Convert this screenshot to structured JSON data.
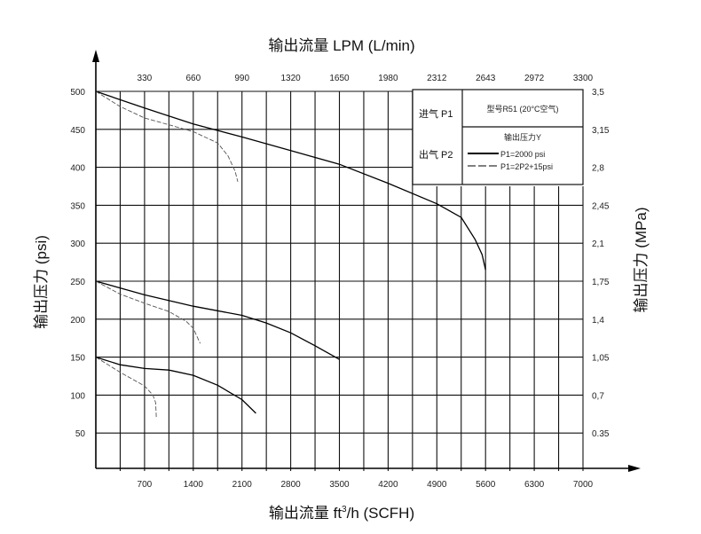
{
  "chart_data": {
    "type": "line",
    "title_top": "输出流量 LPM (L/min)",
    "xlabel_html_prefix": "输出流量 ft",
    "xlabel_sup": "3",
    "xlabel_suffix": "/h (SCFH)",
    "ylabel_left": "输出压力 (psi)",
    "ylabel_right": "输出压力 (MPa)",
    "xlim": [
      0,
      7000
    ],
    "ylim": [
      0,
      500
    ],
    "x_ticks": [
      "700",
      "1400",
      "2100",
      "2800",
      "3500",
      "4200",
      "4900",
      "5600",
      "6300",
      "7000"
    ],
    "x_tick_values": [
      700,
      1400,
      2100,
      2800,
      3500,
      4200,
      4900,
      5600,
      6300,
      7000
    ],
    "top_ticks": [
      "330",
      "660",
      "990",
      "1320",
      "1650",
      "1980",
      "2312",
      "2643",
      "2972",
      "3300"
    ],
    "y_ticks": [
      "50",
      "100",
      "150",
      "200",
      "250",
      "300",
      "350",
      "400",
      "450",
      "500"
    ],
    "y_tick_values": [
      50,
      100,
      150,
      200,
      250,
      300,
      350,
      400,
      450,
      500
    ],
    "right_ticks": [
      "0.35",
      "0,7",
      "1,05",
      "1,4",
      "1,75",
      "2,1",
      "2,45",
      "2,8",
      "3,15",
      "3,5"
    ],
    "grid": true,
    "legend": {
      "inlet": "进气 P1",
      "outlet": "出气 P2",
      "model": "型号R51 (20°C空气)",
      "heading": "输出压力Y",
      "solid_label": "P1=2000 psi",
      "dashed_label": "P1=2P2+15psi"
    },
    "series": [
      {
        "name": "P1=2000 psi, P2=500",
        "style": "solid",
        "points": [
          [
            0,
            500
          ],
          [
            700,
            478
          ],
          [
            1400,
            457
          ],
          [
            2100,
            440
          ],
          [
            2800,
            422
          ],
          [
            3500,
            404
          ],
          [
            4200,
            379
          ],
          [
            4900,
            352
          ],
          [
            5250,
            334
          ],
          [
            5450,
            305
          ],
          [
            5550,
            285
          ],
          [
            5600,
            265
          ]
        ]
      },
      {
        "name": "P1=2P2+15psi, P2=500",
        "style": "dashed",
        "points": [
          [
            0,
            500
          ],
          [
            350,
            480
          ],
          [
            700,
            465
          ],
          [
            1050,
            456
          ],
          [
            1400,
            447
          ],
          [
            1750,
            432
          ],
          [
            1900,
            415
          ],
          [
            2000,
            395
          ],
          [
            2040,
            381
          ]
        ]
      },
      {
        "name": "P1=2000 psi, P2=250",
        "style": "solid",
        "points": [
          [
            0,
            250
          ],
          [
            700,
            232
          ],
          [
            1400,
            217
          ],
          [
            2100,
            205
          ],
          [
            2450,
            195
          ],
          [
            2800,
            182
          ],
          [
            3150,
            165
          ],
          [
            3500,
            147
          ]
        ]
      },
      {
        "name": "P1=2P2+15psi, P2=250",
        "style": "dashed",
        "points": [
          [
            0,
            250
          ],
          [
            350,
            233
          ],
          [
            700,
            221
          ],
          [
            1050,
            210
          ],
          [
            1300,
            197
          ],
          [
            1400,
            188
          ],
          [
            1500,
            168
          ]
        ]
      },
      {
        "name": "P1=2000 psi, P2=150",
        "style": "solid",
        "points": [
          [
            0,
            150
          ],
          [
            350,
            140
          ],
          [
            700,
            135
          ],
          [
            1050,
            133
          ],
          [
            1400,
            126
          ],
          [
            1750,
            113
          ],
          [
            2100,
            94
          ],
          [
            2300,
            76
          ]
        ]
      },
      {
        "name": "P1=2P2+15psi, P2=150",
        "style": "dashed",
        "points": [
          [
            0,
            150
          ],
          [
            350,
            130
          ],
          [
            700,
            112
          ],
          [
            820,
            100
          ],
          [
            860,
            90
          ],
          [
            870,
            70
          ]
        ]
      }
    ]
  }
}
